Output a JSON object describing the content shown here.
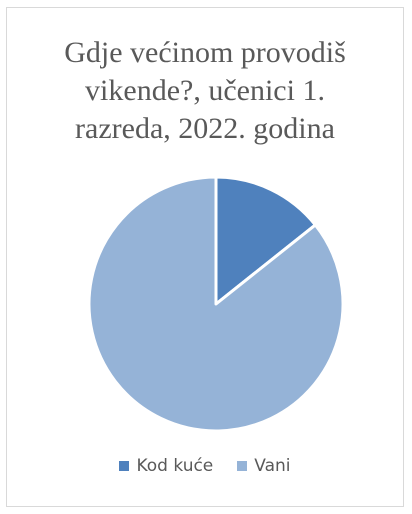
{
  "chart_data": {
    "type": "pie",
    "title_lines": [
      "Gdje većinom provodiš",
      "vikende?, učenici 1.",
      "razreda, 2022. godina"
    ],
    "categories": [
      "Kod kuće",
      "Vani"
    ],
    "values": [
      14.3,
      85.7
    ],
    "colors": [
      "#4f81bd",
      "#95b3d7"
    ],
    "start_angle_deg": 0,
    "direction": "clockwise",
    "legend_position": "bottom",
    "data_labels": false
  }
}
